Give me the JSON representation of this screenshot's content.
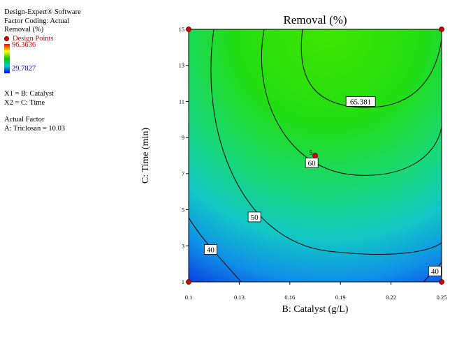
{
  "software": "Design-Expert® Software",
  "factor_coding": "Factor Coding: Actual",
  "response": "Removal (%)",
  "legend": {
    "design_points": "Design Points",
    "high": "96.3636",
    "low": "29.7827"
  },
  "axes_info": {
    "x1": "X1 = B: Catalyst",
    "x2": "X2 = C: Time"
  },
  "actual_factor": {
    "heading": "Actual Factor",
    "value": "A: Triclosan = 10.03"
  },
  "colors": {
    "high": "#ff0000",
    "mid": "#33ee00",
    "low": "#0033ff",
    "point": "#d40000"
  },
  "chart_data": {
    "type": "contour",
    "title": "Removal (%)",
    "xlabel": "B: Catalyst (g/L)",
    "ylabel": "C: Time (min)",
    "xlim": [
      0.1,
      0.25
    ],
    "ylim": [
      1,
      15
    ],
    "xticks": [
      "0.1",
      "0.13",
      "0.16",
      "0.19",
      "0.22",
      "0.25"
    ],
    "yticks": [
      "1",
      "3",
      "5",
      "7",
      "9",
      "11",
      "13",
      "15"
    ],
    "contours": [
      {
        "level": 40,
        "labels": [
          "40",
          "40"
        ]
      },
      {
        "level": 50,
        "labels": [
          "50"
        ]
      },
      {
        "level": 60,
        "labels": [
          "60"
        ]
      },
      {
        "level": 65.381,
        "labels": [
          "65.381"
        ]
      }
    ],
    "design_points": [
      {
        "x": 0.1,
        "y": 1
      },
      {
        "x": 0.25,
        "y": 1
      },
      {
        "x": 0.1,
        "y": 15
      },
      {
        "x": 0.25,
        "y": 15
      },
      {
        "x": 0.175,
        "y": 8,
        "label": "5"
      }
    ]
  }
}
